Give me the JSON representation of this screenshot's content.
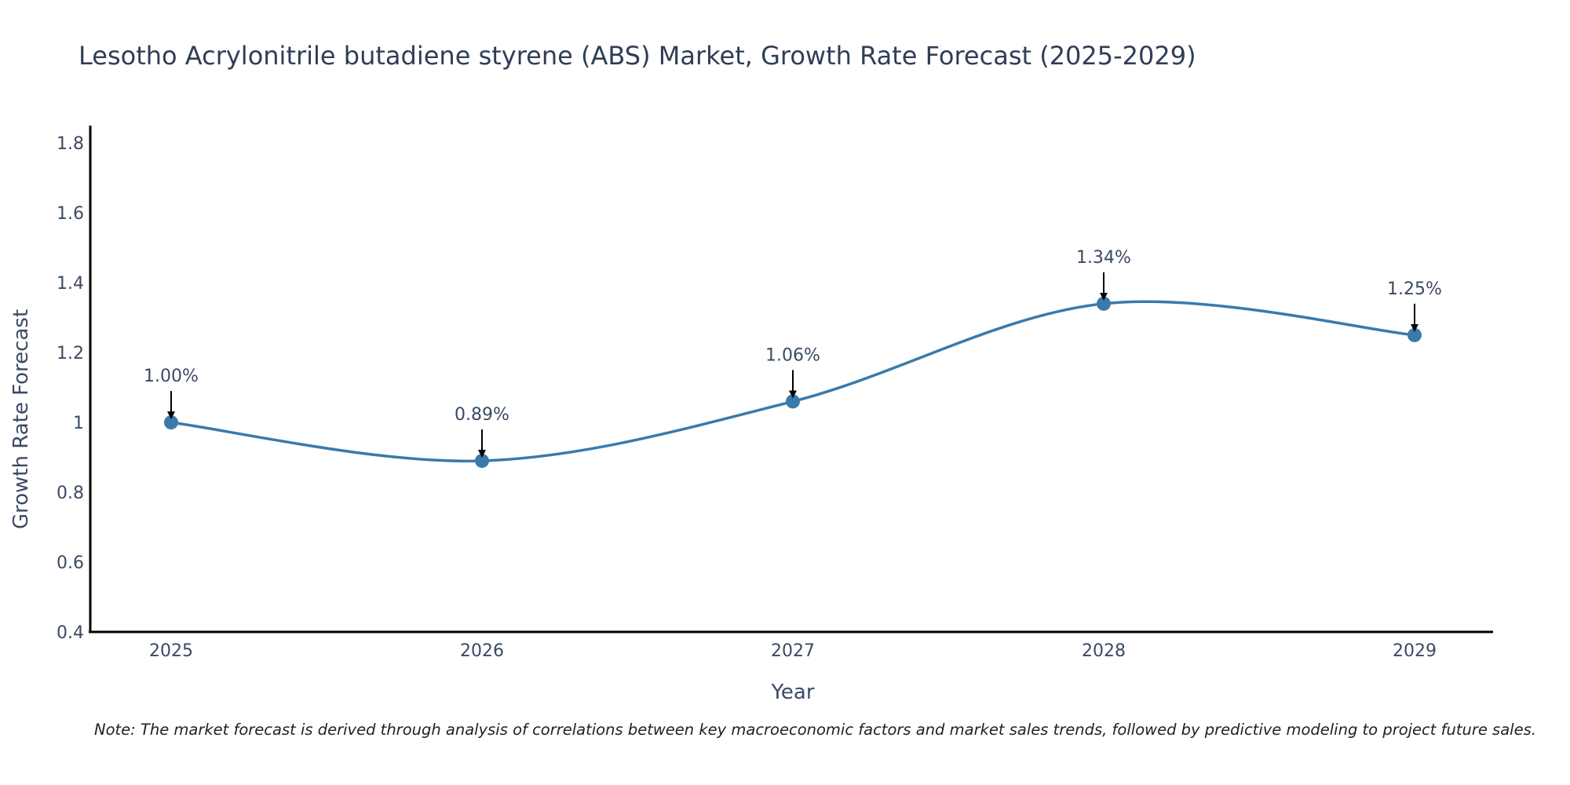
{
  "chart_data": {
    "type": "line",
    "title": "Lesotho Acrylonitrile butadiene styrene (ABS) Market, Growth Rate Forecast (2025-2029)",
    "xlabel": "Year",
    "ylabel": "Growth Rate Forecast",
    "categories": [
      "2025",
      "2026",
      "2027",
      "2028",
      "2029"
    ],
    "series": [
      {
        "name": "Growth Rate Forecast",
        "values": [
          1.0,
          0.89,
          1.06,
          1.34,
          1.25
        ],
        "labels": [
          "1.00%",
          "0.89%",
          "1.06%",
          "1.34%",
          "1.25%"
        ]
      }
    ],
    "ylim": [
      0.4,
      1.85
    ],
    "yticks": [
      0.4,
      0.6,
      0.8,
      1,
      1.2,
      1.4,
      1.6,
      1.8
    ],
    "ytick_labels": [
      "0.4",
      "0.6",
      "0.8",
      "1",
      "1.2",
      "1.4",
      "1.6",
      "1.8"
    ],
    "grid": false,
    "line_color": "#3a7aab",
    "note": "Note: The market forecast is derived through analysis of correlations between key macroeconomic factors and market sales trends, followed by predictive modeling to project future sales."
  }
}
